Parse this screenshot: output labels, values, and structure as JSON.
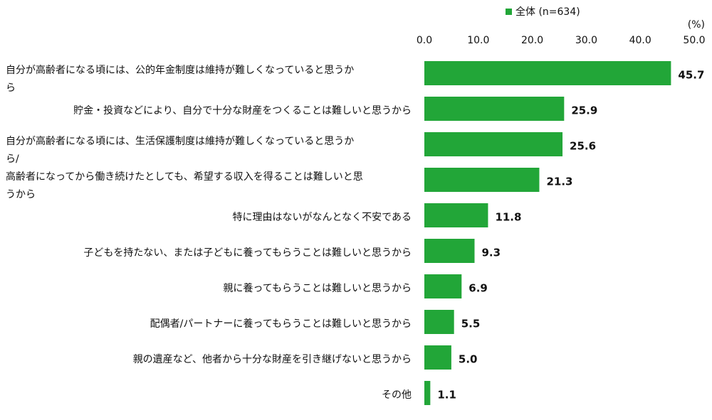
{
  "chart_data": {
    "type": "bar",
    "orientation": "horizontal",
    "x_label": "(%)",
    "categories": [
      "自分が高齢者になる頃には、公的年金制度は維持が難しくなっていると思うか\nら",
      "貯金・投資などにより、自分で十分な財産をつくることは難しいと思うから",
      "自分が高齢者になる頃には、生活保護制度は維持が難しくなっていると思うか\nら/",
      "高齢者になってから働き続けたとしても、希望する収入を得ることは難しいと思\nうから",
      "特に理由はないがなんとなく不安である",
      "子どもを持たない、または子どもに養ってもらうことは難しいと思うから",
      "親に養ってもらうことは難しいと思うから",
      "配偶者/パートナーに養ってもらうことは難しいと思うから",
      "親の遺産など、他者から十分な財産を引き継げないと思うから",
      "その他"
    ],
    "series": [
      {
        "name": "全体 (n=634)",
        "color": "#22a638",
        "values": [
          45.7,
          25.9,
          25.6,
          21.3,
          11.8,
          9.3,
          6.9,
          5.5,
          5.0,
          1.1
        ],
        "value_labels": [
          "45.7",
          "25.9",
          "25.6",
          "21.3",
          "11.8",
          "9.3",
          "6.9",
          "5.5",
          "5.0",
          "1.1"
        ]
      }
    ],
    "xlim": [
      0,
      50
    ],
    "xticks": [
      {
        "value": 0,
        "label": "0.0"
      },
      {
        "value": 10,
        "label": "10.0"
      },
      {
        "value": 20,
        "label": "20.0"
      },
      {
        "value": 30,
        "label": "30.0"
      },
      {
        "value": 40,
        "label": "40.0"
      },
      {
        "value": 50,
        "label": "50.0"
      }
    ],
    "legend": "top"
  }
}
